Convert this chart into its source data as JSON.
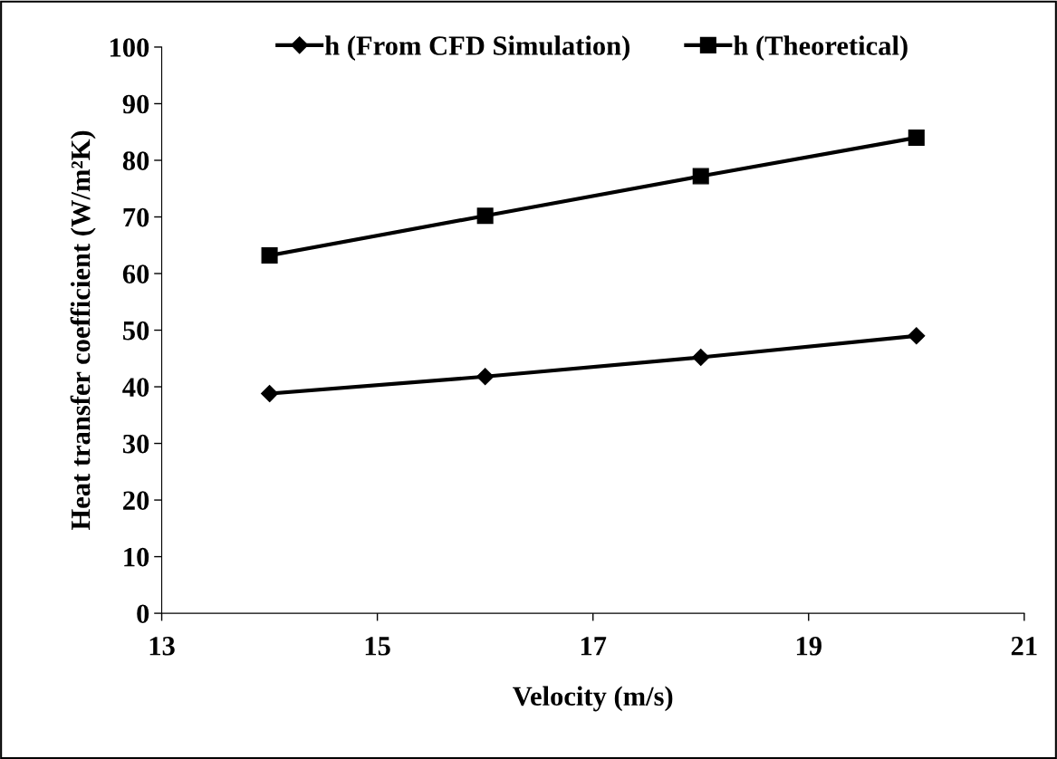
{
  "chart_data": {
    "type": "line",
    "xlabel": "Velocity (m/s)",
    "ylabel": "Heat transfer coefficient (W/m²K)",
    "x": [
      14,
      16,
      18,
      20
    ],
    "series": [
      {
        "name": "h (From CFD Simulation)",
        "color": "#000000",
        "marker": "diamond",
        "values": [
          38.8,
          41.8,
          45.2,
          49.0
        ]
      },
      {
        "name": "h (Theoretical)",
        "color": "#000000",
        "marker": "square",
        "values": [
          63.2,
          70.2,
          77.2,
          84.0
        ]
      }
    ],
    "xlim": [
      13,
      21
    ],
    "xticks": [
      13,
      15,
      17,
      19,
      21
    ],
    "ylim": [
      0,
      100
    ],
    "yticks": [
      0,
      10,
      20,
      30,
      40,
      50,
      60,
      70,
      80,
      90,
      100
    ],
    "grid": false,
    "legend": "top",
    "line_style": "solid"
  }
}
